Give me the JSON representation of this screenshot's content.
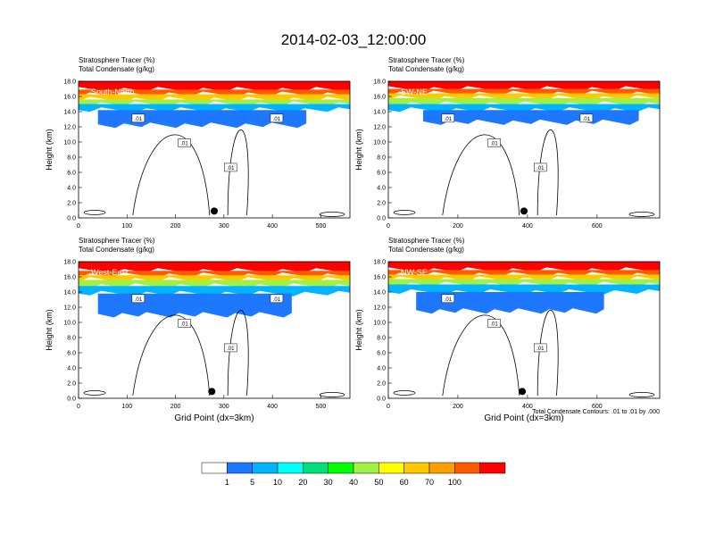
{
  "figure": {
    "title": "2014-02-03_12:00:00",
    "contour_note": "Total Condensate Contours: .01 to .01 by .000"
  },
  "chart_data": [
    {
      "type": "heatmap",
      "panel_label": "South-North",
      "header_line1": "Stratosphere Tracer   (%)",
      "header_line2": "Total Condensate   (g/kg)",
      "xlabel": "",
      "ylabel": "Height (km)",
      "xlim": [
        0,
        560
      ],
      "ylim": [
        0,
        18
      ],
      "xticks": [
        0,
        100,
        200,
        300,
        400,
        500
      ],
      "yticks": [
        "0.0",
        "2.0",
        "4.0",
        "6.0",
        "8.0",
        "10.0",
        "12.0",
        "14.0",
        "16.0",
        "18.0"
      ],
      "contour_labels": [
        ".01",
        ".01",
        ".01",
        ".01"
      ],
      "marker": {
        "x": 280,
        "y": 0.9
      },
      "layers": [
        {
          "level": 100,
          "x": [
            0,
            560
          ],
          "y": [
            16.9,
            18
          ]
        },
        {
          "level": 70,
          "x": [
            0,
            560
          ],
          "y": [
            16.3,
            16.9
          ]
        },
        {
          "level": 50,
          "x": [
            0,
            560
          ],
          "y": [
            15.6,
            16.3
          ]
        },
        {
          "level": 30,
          "x": [
            0,
            560
          ],
          "y": [
            15.0,
            15.6
          ]
        },
        {
          "level": 10,
          "x": [
            0,
            560
          ],
          "y": [
            14.2,
            15.0
          ]
        },
        {
          "level": 5,
          "x": [
            40,
            470
          ],
          "y": [
            12.2,
            14.2
          ]
        }
      ]
    },
    {
      "type": "heatmap",
      "panel_label": "SW-NE",
      "header_line1": "Stratosphere Tracer   (%)",
      "header_line2": "Total Condensate   (g/kg)",
      "xlabel": "",
      "ylabel": "Height (km)",
      "xlim": [
        0,
        780
      ],
      "ylim": [
        0,
        18
      ],
      "xticks": [
        0,
        200,
        400,
        600
      ],
      "yticks": [
        "0.0",
        "2.0",
        "4.0",
        "6.0",
        "8.0",
        "10.0",
        "12.0",
        "14.0",
        "16.0",
        "18.0"
      ],
      "contour_labels": [
        ".01",
        ".01",
        ".01",
        ".01"
      ],
      "marker": {
        "x": 390,
        "y": 0.9
      },
      "layers": [
        {
          "level": 100,
          "x": [
            0,
            780
          ],
          "y": [
            17.0,
            18
          ]
        },
        {
          "level": 70,
          "x": [
            0,
            780
          ],
          "y": [
            16.4,
            17.0
          ]
        },
        {
          "level": 50,
          "x": [
            0,
            780
          ],
          "y": [
            15.8,
            16.4
          ]
        },
        {
          "level": 30,
          "x": [
            0,
            780
          ],
          "y": [
            15.0,
            15.8
          ]
        },
        {
          "level": 10,
          "x": [
            0,
            780
          ],
          "y": [
            14.2,
            15.0
          ]
        },
        {
          "level": 5,
          "x": [
            100,
            720
          ],
          "y": [
            12.6,
            14.2
          ]
        }
      ]
    },
    {
      "type": "heatmap",
      "panel_label": "West-East",
      "header_line1": "Stratosphere Tracer   (%)",
      "header_line2": "Total Condensate   (g/kg)",
      "xlabel": "Grid Point (dx=3km)",
      "ylabel": "Height (km)",
      "xlim": [
        0,
        560
      ],
      "ylim": [
        0,
        18
      ],
      "xticks": [
        0,
        100,
        200,
        300,
        400,
        500
      ],
      "yticks": [
        "0.0",
        "2.0",
        "4.0",
        "6.0",
        "8.0",
        "10.0",
        "12.0",
        "14.0",
        "16.0",
        "18.0"
      ],
      "contour_labels": [
        ".01",
        ".01",
        ".01",
        ".01"
      ],
      "marker": {
        "x": 275,
        "y": 0.9
      },
      "layers": [
        {
          "level": 100,
          "x": [
            0,
            560
          ],
          "y": [
            16.8,
            18
          ]
        },
        {
          "level": 70,
          "x": [
            0,
            560
          ],
          "y": [
            16.2,
            16.8
          ]
        },
        {
          "level": 50,
          "x": [
            0,
            560
          ],
          "y": [
            15.6,
            16.2
          ]
        },
        {
          "level": 30,
          "x": [
            0,
            560
          ],
          "y": [
            14.8,
            15.6
          ]
        },
        {
          "level": 10,
          "x": [
            0,
            560
          ],
          "y": [
            13.8,
            14.8
          ]
        },
        {
          "level": 5,
          "x": [
            40,
            440
          ],
          "y": [
            11.0,
            13.8
          ]
        }
      ]
    },
    {
      "type": "heatmap",
      "panel_label": "NW-SE",
      "header_line1": "Stratosphere Tracer   (%)",
      "header_line2": "Total Condensate   (g/kg)",
      "xlabel": "Grid Point (dx=3km)",
      "ylabel": "Height (km)",
      "xlim": [
        0,
        780
      ],
      "ylim": [
        0,
        18
      ],
      "xticks": [
        0,
        200,
        400,
        600
      ],
      "yticks": [
        "0.0",
        "2.0",
        "4.0",
        "6.0",
        "8.0",
        "10.0",
        "12.0",
        "14.0",
        "16.0",
        "18.0"
      ],
      "contour_labels": [
        ".01",
        ".01",
        ".01"
      ],
      "marker": {
        "x": 385,
        "y": 0.9
      },
      "layers": [
        {
          "level": 100,
          "x": [
            0,
            780
          ],
          "y": [
            16.9,
            18
          ]
        },
        {
          "level": 70,
          "x": [
            0,
            780
          ],
          "y": [
            16.3,
            16.9
          ]
        },
        {
          "level": 50,
          "x": [
            0,
            780
          ],
          "y": [
            15.7,
            16.3
          ]
        },
        {
          "level": 30,
          "x": [
            0,
            780
          ],
          "y": [
            15.0,
            15.7
          ]
        },
        {
          "level": 10,
          "x": [
            0,
            780
          ],
          "y": [
            14.0,
            15.0
          ]
        },
        {
          "level": 5,
          "x": [
            80,
            620
          ],
          "y": [
            11.5,
            14.0
          ]
        }
      ]
    }
  ],
  "colorbar": {
    "colors": [
      "#ffffff",
      "#1e78ff",
      "#00b4ff",
      "#00ffff",
      "#00e07a",
      "#00ff00",
      "#a0f046",
      "#ffff00",
      "#ffc800",
      "#ffa000",
      "#ff5a00",
      "#ff0000"
    ],
    "labels": [
      "1",
      "5",
      "10",
      "20",
      "30",
      "40",
      "50",
      "60",
      "70",
      "100"
    ],
    "level_colors": {
      "100": "#ff0000",
      "70": "#ff5a00",
      "50": "#ffc800",
      "30": "#a0f046",
      "10": "#00b4ff",
      "5": "#1e78ff"
    }
  }
}
